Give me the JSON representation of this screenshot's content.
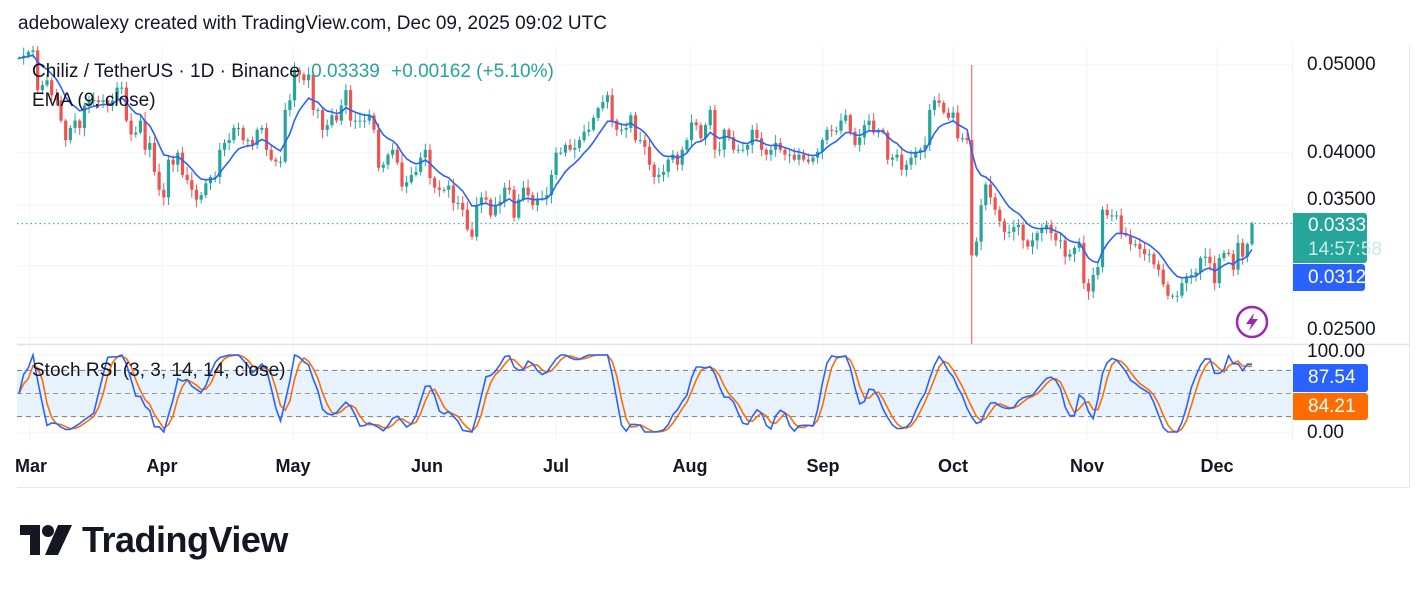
{
  "attribution": "adebowalexy created with TradingView.com, Dec 09, 2025 09:02 UTC",
  "legend": {
    "symbol": "Chiliz / TetherUS · 1D · Binance",
    "last": "0.03339",
    "change": "+0.00162 (+5.10%)",
    "ema": "EMA (9, close)",
    "stoch": "Stoch RSI (3, 3, 14, 14, close)"
  },
  "tags": {
    "price": "0.03339",
    "countdown": "14:57:58",
    "ema": "0.03122",
    "k": "87.54",
    "d": "84.21"
  },
  "logo": "TradingView",
  "icons": {
    "alert": "lightning-bolt-icon",
    "logo": "tradingview-logo-icon"
  },
  "colors": {
    "up": "#26a69a",
    "down": "#ef5350",
    "ema": "#2962ff",
    "stoch_k": "#2962ff",
    "stoch_d": "#ff6d00",
    "band_fill": "#e3f2fd",
    "alert": "#9c27b0"
  },
  "chart_data": {
    "type": "candlestick",
    "symbol": "CHZ/USDT",
    "interval": "1D",
    "price_axis": {
      "scale": "log",
      "tick_labels": [
        "0.05000",
        "0.04000",
        "0.03500",
        "0.02500"
      ],
      "ticks": [
        0.05,
        0.04,
        0.035,
        0.025
      ],
      "range": [
        0.0245,
        0.0525
      ]
    },
    "stoch_axis": {
      "tick_labels": [
        "100.00",
        "0.00"
      ],
      "range": [
        0,
        100
      ],
      "bands": [
        20,
        50,
        80
      ]
    },
    "x_tick_labels": [
      "Mar",
      "Apr",
      "May",
      "Jun",
      "Jul",
      "Aug",
      "Sep",
      "Oct",
      "Nov",
      "Dec"
    ],
    "grid": true,
    "oct10_crash_candle": {
      "high": 0.05,
      "low": 0.0245
    },
    "closes": [
      0.0509,
      0.0512,
      0.0517,
      0.0519,
      0.0469,
      0.0475,
      0.0481,
      0.0463,
      0.0457,
      0.0434,
      0.0413,
      0.0426,
      0.0434,
      0.0426,
      0.0451,
      0.0457,
      0.0457,
      0.0455,
      0.0457,
      0.0451,
      0.0457,
      0.0472,
      0.0472,
      0.0434,
      0.0419,
      0.0421,
      0.0434,
      0.0403,
      0.041,
      0.0381,
      0.0364,
      0.0357,
      0.0393,
      0.0388,
      0.04,
      0.0378,
      0.0373,
      0.0364,
      0.0355,
      0.0359,
      0.037,
      0.0376,
      0.0376,
      0.0403,
      0.041,
      0.0413,
      0.0426,
      0.0426,
      0.0413,
      0.0413,
      0.0408,
      0.0424,
      0.0426,
      0.0403,
      0.0393,
      0.0391,
      0.0391,
      0.0446,
      0.0457,
      0.0494,
      0.0488,
      0.0481,
      0.0488,
      0.0446,
      0.0446,
      0.0424,
      0.0429,
      0.044,
      0.0434,
      0.0451,
      0.0469,
      0.0434,
      0.0434,
      0.0434,
      0.0434,
      0.044,
      0.0424,
      0.0385,
      0.0388,
      0.0398,
      0.0403,
      0.039,
      0.0367,
      0.0371,
      0.0378,
      0.0381,
      0.0395,
      0.0403,
      0.0375,
      0.0366,
      0.0364,
      0.0364,
      0.0368,
      0.0352,
      0.0352,
      0.0346,
      0.0329,
      0.0323,
      0.035,
      0.0357,
      0.0355,
      0.0341,
      0.035,
      0.0353,
      0.0366,
      0.0364,
      0.0339,
      0.0355,
      0.0366,
      0.0359,
      0.035,
      0.0356,
      0.0356,
      0.0359,
      0.0378,
      0.04,
      0.04,
      0.0408,
      0.0403,
      0.0405,
      0.0413,
      0.0422,
      0.0424,
      0.0437,
      0.0448,
      0.0455,
      0.0463,
      0.0434,
      0.0424,
      0.0424,
      0.0426,
      0.044,
      0.0413,
      0.0413,
      0.0406,
      0.0388,
      0.0376,
      0.0378,
      0.0381,
      0.0393,
      0.0398,
      0.0388,
      0.0403,
      0.0413,
      0.0432,
      0.0429,
      0.0415,
      0.0429,
      0.0446,
      0.0403,
      0.0403,
      0.0424,
      0.0416,
      0.0403,
      0.0403,
      0.0403,
      0.0408,
      0.0424,
      0.0415,
      0.0403,
      0.0398,
      0.0403,
      0.041,
      0.0403,
      0.0398,
      0.0398,
      0.0393,
      0.0398,
      0.0393,
      0.0391,
      0.0395,
      0.0401,
      0.0413,
      0.0424,
      0.0423,
      0.0423,
      0.0434,
      0.044,
      0.0422,
      0.0408,
      0.0416,
      0.0429,
      0.0434,
      0.0421,
      0.0424,
      0.0421,
      0.0393,
      0.0395,
      0.0398,
      0.0383,
      0.0388,
      0.0395,
      0.0401,
      0.0403,
      0.0408,
      0.0446,
      0.0457,
      0.0454,
      0.0443,
      0.0437,
      0.0443,
      0.0415,
      0.0415,
      0.0413,
      0.0308,
      0.0319,
      0.035,
      0.0369,
      0.0357,
      0.0346,
      0.0336,
      0.0327,
      0.0327,
      0.0331,
      0.0333,
      0.032,
      0.0315,
      0.032,
      0.0326,
      0.0329,
      0.0333,
      0.0326,
      0.032,
      0.032,
      0.0307,
      0.0309,
      0.0314,
      0.0318,
      0.0287,
      0.0281,
      0.0293,
      0.0299,
      0.0346,
      0.0341,
      0.0341,
      0.0341,
      0.0326,
      0.0324,
      0.0317,
      0.0317,
      0.0313,
      0.0309,
      0.0309,
      0.0301,
      0.0297,
      0.0286,
      0.0278,
      0.0278,
      0.0278,
      0.0287,
      0.0292,
      0.0293,
      0.0295,
      0.0306,
      0.0307,
      0.0302,
      0.0287,
      0.0306,
      0.031,
      0.0309,
      0.0297,
      0.0318,
      0.0307,
      0.0317,
      0.03339
    ]
  }
}
